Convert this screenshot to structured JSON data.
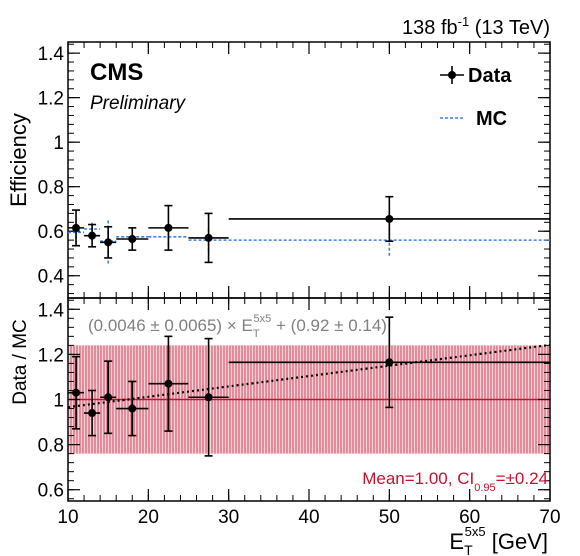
{
  "header": {
    "lumi_text": "138 fb",
    "lumi_sup": "-1",
    "energy_text": " (13 TeV)"
  },
  "branding": {
    "experiment": "CMS",
    "status": "Preliminary"
  },
  "colors": {
    "data": "#000000",
    "mc": "#3b82e6",
    "band": "#c8102e",
    "fit": "#000000",
    "fit_text": "#808080"
  },
  "chart_data": {
    "type": "scatter",
    "xlabel": "E",
    "xlabel_sub": "T",
    "xlabel_sup": "5x5",
    "xlabel_unit": " [GeV]",
    "xlim": [
      10,
      70
    ],
    "x_ticks": [
      "10",
      "20",
      "30",
      "40",
      "50",
      "60",
      "70"
    ],
    "top_panel": {
      "ylabel": "Efficiency",
      "ylim": [
        0.3,
        1.45
      ],
      "y_ticks": [
        "0.4",
        "0.6",
        "0.8",
        "1",
        "1.2",
        "1.4"
      ],
      "legend": {
        "position": "top-right",
        "data_label": "Data",
        "mc_label": "MC"
      },
      "series": [
        {
          "name": "Data",
          "points": [
            {
              "x": 11,
              "xlo": 10,
              "xhi": 12,
              "y": 0.615,
              "yerr": 0.08
            },
            {
              "x": 13,
              "xlo": 12,
              "xhi": 14,
              "y": 0.58,
              "yerr": 0.05
            },
            {
              "x": 15,
              "xlo": 14,
              "xhi": 16,
              "y": 0.55,
              "yerr": 0.07
            },
            {
              "x": 18,
              "xlo": 16,
              "xhi": 20,
              "y": 0.565,
              "yerr": 0.05
            },
            {
              "x": 22.5,
              "xlo": 20,
              "xhi": 25,
              "y": 0.615,
              "yerr": 0.1
            },
            {
              "x": 27.5,
              "xlo": 25,
              "xhi": 30,
              "y": 0.57,
              "yerr": 0.11
            },
            {
              "x": 50,
              "xlo": 30,
              "xhi": 70,
              "y": 0.655,
              "yerr": 0.1
            }
          ]
        },
        {
          "name": "MC",
          "points": [
            {
              "x": 11,
              "xlo": 10,
              "xhi": 12,
              "y": 0.595,
              "yerr": 0.05
            },
            {
              "x": 13,
              "xlo": 12,
              "xhi": 14,
              "y": 0.61,
              "yerr": 0.03
            },
            {
              "x": 15,
              "xlo": 14,
              "xhi": 16,
              "y": 0.555,
              "yerr": 0.1
            },
            {
              "x": 18,
              "xlo": 16,
              "xhi": 20,
              "y": 0.575,
              "yerr": 0.02
            },
            {
              "x": 22.5,
              "xlo": 20,
              "xhi": 25,
              "y": 0.575,
              "yerr": 0.04
            },
            {
              "x": 27.5,
              "xlo": 25,
              "xhi": 30,
              "y": 0.56,
              "yerr": 0.05
            },
            {
              "x": 50,
              "xlo": 30,
              "xhi": 70,
              "y": 0.56,
              "yerr": 0.07
            }
          ]
        }
      ]
    },
    "bottom_panel": {
      "ylabel": "Data / MC",
      "ylim": [
        0.55,
        1.45
      ],
      "y_ticks": [
        "0.6",
        "0.8",
        "1",
        "1.2",
        "1.4"
      ],
      "band": {
        "center": 1.0,
        "halfwidth": 0.24
      },
      "fit": {
        "slope": 0.0046,
        "intercept": 0.92
      },
      "fit_label_parts": [
        "(0.0046 ± 0.0065) × E",
        "T",
        "5x5",
        " + (0.92 ± 0.14)"
      ],
      "mean_label_parts": [
        "Mean=1.00, CI",
        "0.95",
        "=±0.24"
      ],
      "points": [
        {
          "x": 11,
          "xlo": 10,
          "xhi": 12,
          "y": 1.03,
          "yerr": 0.16
        },
        {
          "x": 13,
          "xlo": 12,
          "xhi": 14,
          "y": 0.94,
          "yerr": 0.1
        },
        {
          "x": 15,
          "xlo": 14,
          "xhi": 16,
          "y": 1.01,
          "yerr": 0.16
        },
        {
          "x": 18,
          "xlo": 16,
          "xhi": 20,
          "y": 0.96,
          "yerr": 0.12
        },
        {
          "x": 22.5,
          "xlo": 20,
          "xhi": 25,
          "y": 1.07,
          "yerr": 0.21
        },
        {
          "x": 27.5,
          "xlo": 25,
          "xhi": 30,
          "y": 1.01,
          "yerr": 0.26
        },
        {
          "x": 50,
          "xlo": 30,
          "xhi": 70,
          "y": 1.165,
          "yerr": 0.2
        }
      ]
    }
  }
}
